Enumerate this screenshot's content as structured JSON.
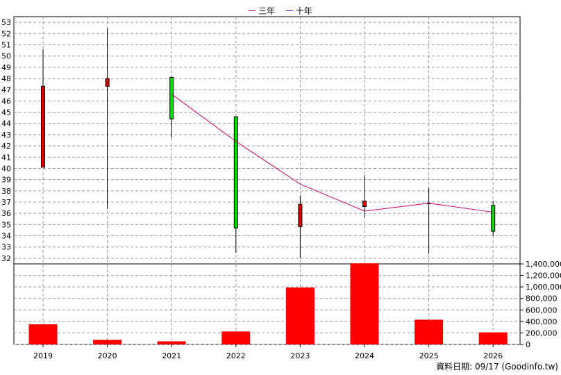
{
  "legend": [
    {
      "label": "三年",
      "color": "#cc0066"
    },
    {
      "label": "十年",
      "color": "#6600cc"
    }
  ],
  "source_note": "資料日期: 09/17  (Goodinfo.tw)",
  "chart_data": {
    "type": "candlestick+line+bar",
    "categories": [
      "2019",
      "2020",
      "2021",
      "2022",
      "2023",
      "2024",
      "2025",
      "2026"
    ],
    "price_axis": {
      "ylim": [
        31.5,
        53.5
      ],
      "ticks": [
        32,
        33,
        34,
        35,
        36,
        37,
        38,
        39,
        40,
        41,
        42,
        43,
        44,
        45,
        46,
        47,
        48,
        49,
        50,
        51,
        52,
        53
      ],
      "grid": true
    },
    "candles": [
      {
        "open": 40.1,
        "close": 47.3,
        "high": 50.6,
        "low": 40.1,
        "color": "red"
      },
      {
        "open": 47.3,
        "close": 48.0,
        "high": 52.5,
        "low": 36.4,
        "color": "red"
      },
      {
        "open": 48.1,
        "close": 44.4,
        "high": 48.1,
        "low": 42.7,
        "color": "green"
      },
      {
        "open": 44.6,
        "close": 34.7,
        "high": 44.6,
        "low": 32.5,
        "color": "green"
      },
      {
        "open": 34.8,
        "close": 36.8,
        "high": 37.6,
        "low": 32.0,
        "color": "red"
      },
      {
        "open": 36.6,
        "close": 37.1,
        "high": 39.4,
        "low": 35.6,
        "color": "red"
      },
      {
        "open": 36.9,
        "close": 36.9,
        "high": 38.3,
        "low": 32.4,
        "color": "red"
      },
      {
        "open": 36.7,
        "close": 34.4,
        "high": 37.1,
        "low": 34.0,
        "color": "green"
      }
    ],
    "series": [
      {
        "name": "三年",
        "type": "line",
        "values": [
          null,
          null,
          46.6,
          42.4,
          38.6,
          36.2,
          36.9,
          36.1
        ]
      }
    ],
    "volume_axis": {
      "ylim": [
        0,
        1400000
      ],
      "ticks": [
        0,
        200000,
        400000,
        600000,
        800000,
        1000000,
        1200000,
        1400000
      ],
      "tick_labels": [
        "0",
        "200,000",
        "400,000",
        "600,000",
        "800,000",
        "1,000,000",
        "1,200,000",
        "1,400,000"
      ]
    },
    "volume": [
      350000,
      80000,
      55000,
      225000,
      990000,
      1410000,
      430000,
      210000
    ]
  }
}
